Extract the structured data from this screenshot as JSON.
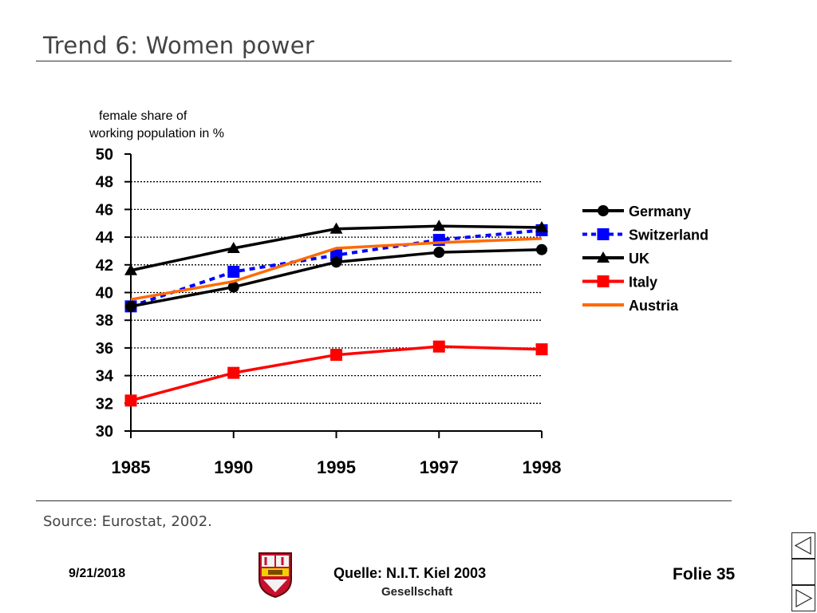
{
  "slide": {
    "title": "Trend 6: Women power",
    "source": "Source: Eurostat, 2002."
  },
  "footer": {
    "date": "9/21/2018",
    "source": "Quelle: N.I.T. Kiel 2003",
    "subtitle": "Gesellschaft",
    "slide_number": "Folie 35"
  },
  "nav": {
    "prev_icon": "triangle-left-icon",
    "blank_icon": "blank",
    "next_icon": "triangle-right-icon"
  },
  "colors": {
    "germany": "#000000",
    "switzerland": "#0000ff",
    "uk": "#000000",
    "italy": "#ff0000",
    "austria": "#ff6a00"
  },
  "chart_data": {
    "type": "line",
    "title": "",
    "ylabel": "female share of working population in %",
    "xlabel": "",
    "categories": [
      "1985",
      "1990",
      "1995",
      "1997",
      "1998"
    ],
    "ylim": [
      30,
      50
    ],
    "yticks": [
      30,
      32,
      34,
      36,
      38,
      40,
      42,
      44,
      46,
      48,
      50
    ],
    "grid": true,
    "legend_position": "right",
    "series": [
      {
        "name": "Germany",
        "values": [
          39.0,
          40.4,
          42.2,
          42.9,
          43.1
        ],
        "marker": "circle",
        "dash": "solid",
        "color": "#000000"
      },
      {
        "name": "Switzerland",
        "values": [
          39.0,
          41.5,
          42.7,
          43.8,
          44.5
        ],
        "marker": "square",
        "dash": "dashed",
        "color": "#0000ff"
      },
      {
        "name": "UK",
        "values": [
          41.6,
          43.2,
          44.6,
          44.8,
          44.7
        ],
        "marker": "triangle",
        "dash": "solid",
        "color": "#000000"
      },
      {
        "name": "Italy",
        "values": [
          32.2,
          34.2,
          35.5,
          36.1,
          35.9
        ],
        "marker": "square",
        "dash": "solid",
        "color": "#ff0000"
      },
      {
        "name": "Austria",
        "values": [
          39.5,
          40.8,
          43.2,
          43.6,
          43.9
        ],
        "marker": "none",
        "dash": "solid",
        "color": "#ff6a00"
      }
    ]
  }
}
